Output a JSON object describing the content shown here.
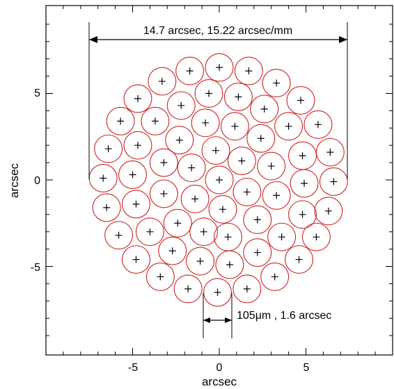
{
  "chart_data": {
    "type": "scatter",
    "title": "",
    "xlabel": "arcsec",
    "ylabel": "arcsec",
    "xlim": [
      -10,
      10
    ],
    "ylim": [
      -9.2,
      10
    ],
    "xticks": [
      -5,
      0,
      5
    ],
    "xtick_labels": [
      "-5",
      "0",
      "5"
    ],
    "yticks": [
      -5,
      0,
      5
    ],
    "ytick_labels": [
      "-5",
      "0",
      "5"
    ],
    "grid": false,
    "fiber_diameter_arcsec": 1.6,
    "colors": {
      "fiber_circle": "#cc2222",
      "center_marker": "#000000",
      "axes": "#000000"
    },
    "annotations": {
      "bundle_width": {
        "text": "14.7 arcsec, 15.22 arcsec/mm",
        "x_from": -7.35,
        "x_to": 7.35,
        "y": 8.0
      },
      "fiber_size": {
        "text": "105μm , 1.6 arcsec",
        "x_from": -0.8,
        "x_to": 0.8,
        "y": -8.1
      }
    },
    "points": [
      {
        "x": 0.0,
        "y": 6.5
      },
      {
        "x": -1.7,
        "y": 6.3
      },
      {
        "x": 1.7,
        "y": 6.3
      },
      {
        "x": -3.3,
        "y": 5.7
      },
      {
        "x": 3.3,
        "y": 5.6
      },
      {
        "x": -0.6,
        "y": 5.0
      },
      {
        "x": 1.1,
        "y": 4.8
      },
      {
        "x": -4.7,
        "y": 4.7
      },
      {
        "x": 4.7,
        "y": 4.6
      },
      {
        "x": -2.2,
        "y": 4.3
      },
      {
        "x": 2.6,
        "y": 4.1
      },
      {
        "x": -5.7,
        "y": 3.4
      },
      {
        "x": -3.7,
        "y": 3.4
      },
      {
        "x": -0.8,
        "y": 3.3
      },
      {
        "x": 0.9,
        "y": 3.1
      },
      {
        "x": 4.0,
        "y": 3.1
      },
      {
        "x": 5.7,
        "y": 3.2
      },
      {
        "x": -2.3,
        "y": 2.3
      },
      {
        "x": 2.4,
        "y": 2.4
      },
      {
        "x": -6.4,
        "y": 1.8
      },
      {
        "x": -4.7,
        "y": 2.0
      },
      {
        "x": -0.2,
        "y": 1.7
      },
      {
        "x": 4.8,
        "y": 1.4
      },
      {
        "x": 6.4,
        "y": 1.6
      },
      {
        "x": -3.2,
        "y": 1.0
      },
      {
        "x": -1.6,
        "y": 0.7
      },
      {
        "x": 1.3,
        "y": 1.1
      },
      {
        "x": 3.0,
        "y": 0.8
      },
      {
        "x": -6.7,
        "y": 0.1
      },
      {
        "x": -5.0,
        "y": 0.3
      },
      {
        "x": 0.0,
        "y": 0.0
      },
      {
        "x": 4.9,
        "y": -0.2
      },
      {
        "x": 6.6,
        "y": -0.1
      },
      {
        "x": -3.2,
        "y": -0.8
      },
      {
        "x": -1.4,
        "y": -1.1
      },
      {
        "x": 1.6,
        "y": -0.7
      },
      {
        "x": 3.3,
        "y": -0.9
      },
      {
        "x": -6.5,
        "y": -1.6
      },
      {
        "x": -4.8,
        "y": -1.4
      },
      {
        "x": 0.2,
        "y": -1.7
      },
      {
        "x": 4.8,
        "y": -2.0
      },
      {
        "x": 6.3,
        "y": -1.8
      },
      {
        "x": -2.4,
        "y": -2.5
      },
      {
        "x": 2.2,
        "y": -2.3
      },
      {
        "x": -5.8,
        "y": -3.2
      },
      {
        "x": -4.0,
        "y": -3.0
      },
      {
        "x": -0.9,
        "y": -3.0
      },
      {
        "x": 0.5,
        "y": -3.3
      },
      {
        "x": 3.6,
        "y": -3.3
      },
      {
        "x": 5.6,
        "y": -3.3
      },
      {
        "x": -2.7,
        "y": -4.1
      },
      {
        "x": 2.2,
        "y": -4.2
      },
      {
        "x": -4.8,
        "y": -4.6
      },
      {
        "x": -1.1,
        "y": -4.7
      },
      {
        "x": 0.6,
        "y": -4.9
      },
      {
        "x": 4.6,
        "y": -4.6
      },
      {
        "x": -3.4,
        "y": -5.6
      },
      {
        "x": 3.2,
        "y": -5.6
      },
      {
        "x": -1.8,
        "y": -6.3
      },
      {
        "x": 1.6,
        "y": -6.3
      },
      {
        "x": -0.1,
        "y": -6.5
      }
    ]
  }
}
